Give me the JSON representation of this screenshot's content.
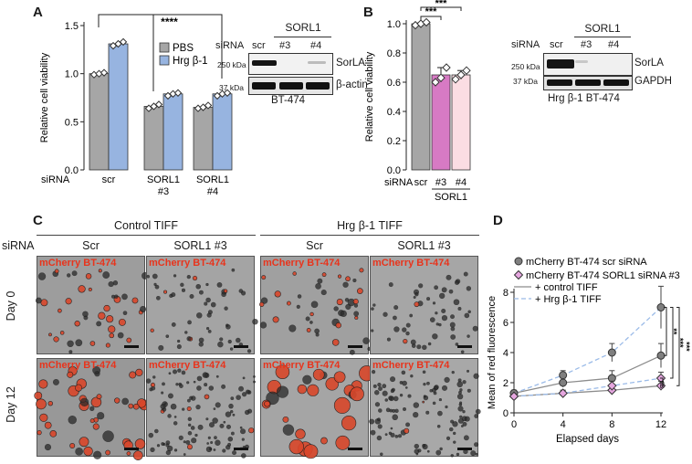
{
  "panels": {
    "A": "A",
    "B": "B",
    "C": "C",
    "D": "D"
  },
  "chart_data": [
    {
      "panel": "A",
      "type": "bar",
      "ylabel": "Relative cell viability",
      "xlabel_prefix": "siRNA",
      "categories": [
        "scr",
        "SORL1 #3",
        "SORL1 #4"
      ],
      "category_lines": [
        [
          "scr"
        ],
        [
          "SORL1",
          "#3"
        ],
        [
          "SORL1",
          "#4"
        ]
      ],
      "series": [
        {
          "name": "PBS",
          "values": [
            1.0,
            0.66,
            0.65
          ],
          "points": [
            [
              0.99,
              1.0,
              1.01
            ],
            [
              0.64,
              0.66,
              0.68
            ],
            [
              0.64,
              0.65,
              0.67
            ]
          ]
        },
        {
          "name": "Hrg β-1",
          "values": [
            1.31,
            0.79,
            0.79
          ],
          "points": [
            [
              1.29,
              1.31,
              1.33
            ],
            [
              0.77,
              0.79,
              0.8
            ],
            [
              0.77,
              0.79,
              0.8
            ]
          ]
        }
      ],
      "ylim": [
        0,
        1.5
      ],
      "yticks": [
        "0.0",
        "0.5",
        "1.0",
        "1.5"
      ],
      "significance": "****",
      "colors": {
        "PBS": "#a6a6a6",
        "Hrg β-1": "#97b4e0"
      }
    },
    {
      "panel": "B",
      "type": "bar",
      "ylabel": "Relative cell viability",
      "xlabel_prefix": "siRNA",
      "categories": [
        "scr",
        "#3",
        "#4"
      ],
      "group_label": "SORL1",
      "values": [
        1.0,
        0.65,
        0.65
      ],
      "points": [
        [
          0.99,
          1.0,
          1.01
        ],
        [
          0.6,
          0.63,
          0.7
        ],
        [
          0.62,
          0.65,
          0.68
        ]
      ],
      "errors": [
        0.005,
        0.05,
        0.03
      ],
      "ylim": [
        0,
        1.0
      ],
      "yticks": [
        "0.0",
        "0.2",
        "0.4",
        "0.6",
        "0.8",
        "1.0"
      ],
      "significance": [
        "***",
        "***"
      ],
      "colors": [
        "#a6a6a6",
        "#d77ac4",
        "#fbdde3"
      ]
    },
    {
      "panel": "D",
      "type": "line",
      "ylabel": "Mean of red fluorescence",
      "xlabel": "Elapsed days",
      "x": [
        0,
        4,
        8,
        12
      ],
      "xticks": [
        "0",
        "4",
        "8",
        "12"
      ],
      "ylim": [
        0,
        8
      ],
      "yticks": [
        "0",
        "2",
        "4",
        "6",
        "8"
      ],
      "series": [
        {
          "name": "scr control",
          "values": [
            1.3,
            2.0,
            2.3,
            3.8
          ],
          "err": [
            0.2,
            0.3,
            0.5,
            0.8
          ],
          "marker": "circle",
          "style": "solid"
        },
        {
          "name": "scr Hrg",
          "values": [
            1.3,
            2.5,
            4.0,
            7.0
          ],
          "err": [
            0.2,
            0.3,
            0.6,
            1.4
          ],
          "marker": "circle",
          "style": "dashed"
        },
        {
          "name": "SORL1 control",
          "values": [
            1.1,
            1.3,
            1.5,
            1.8
          ],
          "err": [
            0.1,
            0.2,
            0.2,
            0.3
          ],
          "marker": "diamond",
          "style": "solid"
        },
        {
          "name": "SORL1 Hrg",
          "values": [
            1.1,
            1.3,
            1.8,
            2.3
          ],
          "err": [
            0.1,
            0.2,
            0.3,
            0.4
          ],
          "marker": "diamond",
          "style": "dashed"
        }
      ],
      "legend": [
        "mCherry BT-474 scr siRNA",
        "mCherry BT-474 SORL1 siRNA #3",
        "+ control TIFF",
        "+ Hrg β-1 TIFF"
      ],
      "significance": [
        "**",
        "***",
        "***",
        "ns"
      ],
      "colors": {
        "line_solid": "#8c8c8c",
        "line_dashed": "#9bbbe8",
        "circle": "#7f7f7f",
        "diamond": "#e5a6df"
      }
    }
  ],
  "blotA": {
    "title": "SORL1",
    "siRNA": "siRNA",
    "lanes": [
      "scr",
      "#3",
      "#4"
    ],
    "mw": [
      "250 kDa",
      "37 kDa"
    ],
    "bands": [
      "SorLA",
      "β-actin"
    ],
    "cell": "BT-474"
  },
  "blotB": {
    "title": "SORL1",
    "siRNA": "siRNA",
    "lanes": [
      "scr",
      "#3",
      "#4"
    ],
    "mw": [
      "250 kDa",
      "37 kDa"
    ],
    "bands": [
      "SorLA",
      "GAPDH"
    ],
    "cell": "Hrg β-1 BT-474"
  },
  "panelC": {
    "siRNA": "siRNA",
    "groups": [
      "Control TIFF",
      "Hrg β-1 TIFF"
    ],
    "columns": [
      "Scr",
      "SORL1 #3",
      "Scr",
      "SORL1 #3"
    ],
    "rows": [
      "Day 0",
      "Day 12"
    ],
    "image_label": "mCherry BT-474"
  }
}
